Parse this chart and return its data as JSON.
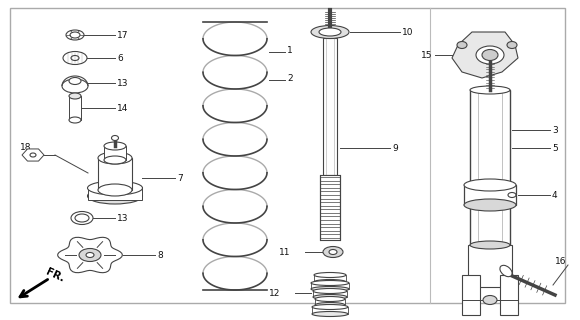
{
  "bg_color": "#ffffff",
  "border_color": "#999999",
  "line_color": "#444444",
  "label_color": "#111111",
  "fig_w": 5.8,
  "fig_h": 3.2,
  "dpi": 100
}
